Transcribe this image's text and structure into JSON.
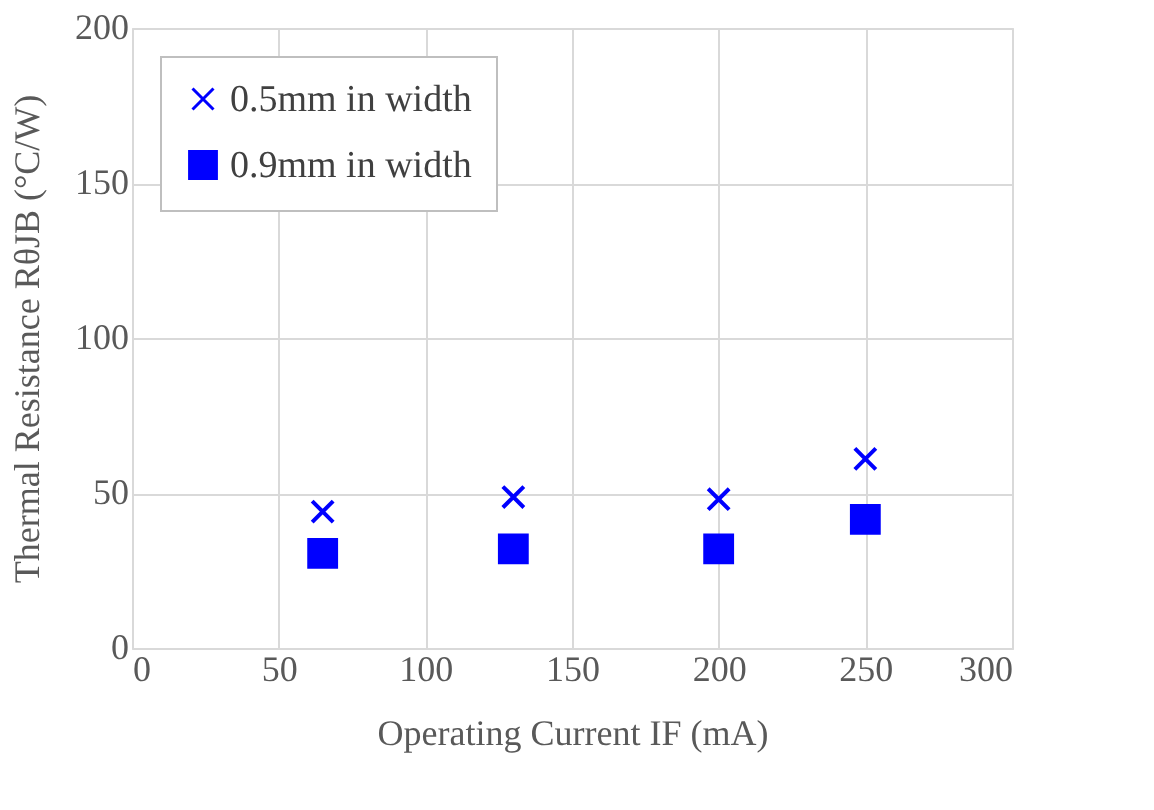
{
  "chart_data": {
    "type": "scatter",
    "xlabel": "Operating Current IF (mA)",
    "ylabel": "Thermal Resistance RθJB (°C/W)",
    "x": [
      65,
      130,
      200,
      250
    ],
    "series": [
      {
        "name": "0.5mm in width",
        "color": "#0000ff",
        "marker": "cross",
        "values": [
          44,
          48.7,
          48,
          61
        ]
      },
      {
        "name": "0.9mm in width",
        "color": "#0000ff",
        "marker": "square",
        "values": [
          30.5,
          32,
          32,
          41.5
        ]
      }
    ],
    "xlim": [
      0,
      300
    ],
    "xticks": [
      0,
      50,
      100,
      150,
      200,
      250,
      300
    ],
    "ylim": [
      0,
      200
    ],
    "yticks": [
      0,
      50,
      100,
      150,
      200
    ],
    "grid": true,
    "legend": "top left"
  }
}
